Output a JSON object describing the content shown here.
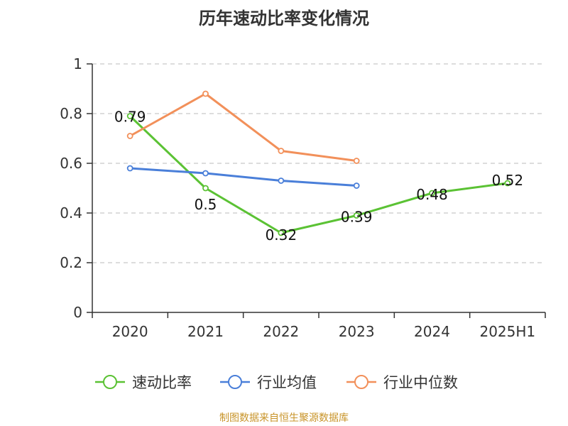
{
  "chart_data": {
    "type": "line",
    "title": "历年速动比率变化情况",
    "categories": [
      "2020",
      "2021",
      "2022",
      "2023",
      "2024",
      "2025H1"
    ],
    "yticks": [
      "0",
      "0.2",
      "0.4",
      "0.6",
      "0.8",
      "1"
    ],
    "ylim": [
      0,
      1
    ],
    "grid": true,
    "legend_position": "bottom",
    "series": [
      {
        "name": "速动比率",
        "color": "#5bc234",
        "values": [
          0.79,
          0.5,
          0.32,
          0.39,
          0.48,
          0.52
        ],
        "labels": [
          "0.79",
          "0.5",
          "0.32",
          "0.39",
          "0.48",
          "0.52"
        ]
      },
      {
        "name": "行业均值",
        "color": "#4a7fd9",
        "values": [
          0.58,
          0.56,
          0.53,
          0.51,
          null,
          null
        ],
        "labels": []
      },
      {
        "name": "行业中位数",
        "color": "#f2905a",
        "values": [
          0.71,
          0.88,
          0.65,
          0.61,
          null,
          null
        ],
        "labels": []
      }
    ],
    "source": "制图数据来自恒生聚源数据库"
  }
}
